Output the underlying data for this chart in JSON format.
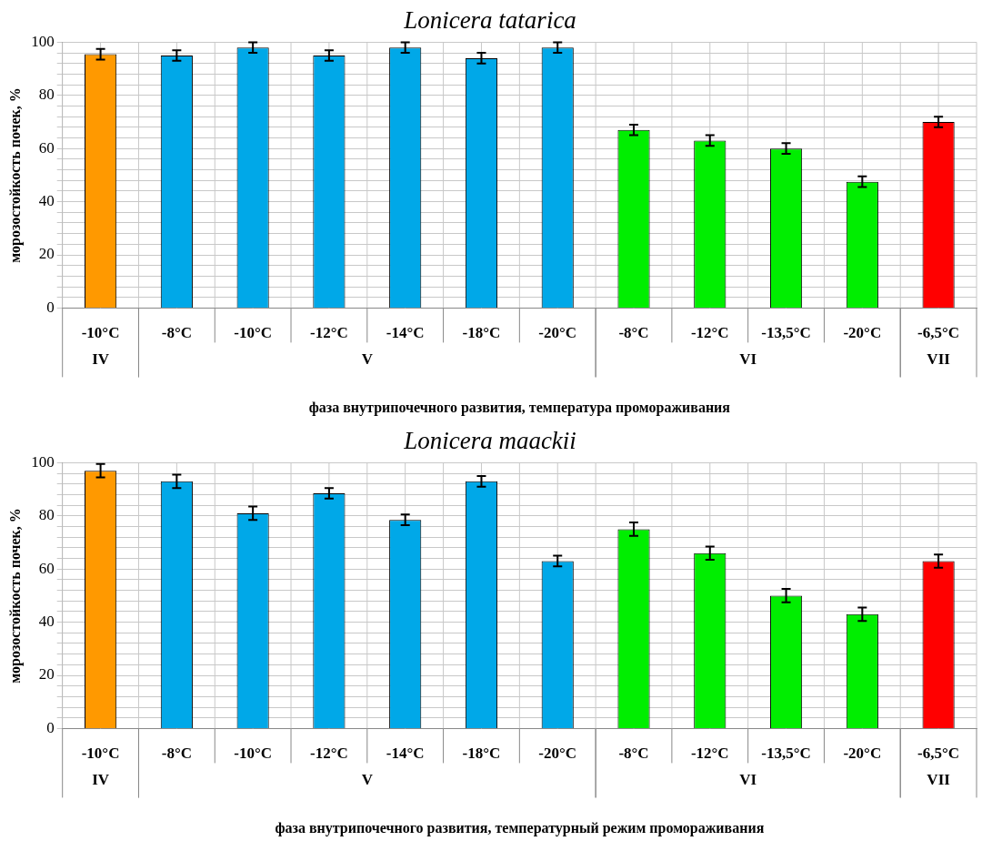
{
  "chart_data": [
    {
      "type": "bar",
      "title": "Lonicera tatarica",
      "xlabel": "фаза внутрипочечного развития, температура промораживания",
      "ylabel": "морозостойкость почек, %",
      "categories": [
        "-10°C",
        "-8°C",
        "-10°C",
        "-12°C",
        "-14°C",
        "-18°C",
        "-20°C",
        "-8°C",
        "-12°C",
        "-13,5°C",
        "-20°C",
        "-6,5°C"
      ],
      "stacked": true,
      "grid": true,
      "legend": false,
      "ylim": [
        0,
        100
      ],
      "yticks": [
        0,
        {
          "value": 4,
          "label": null
        },
        {
          "value": 8,
          "label": null
        },
        {
          "value": 12,
          "label": null
        },
        {
          "value": 16,
          "label": null
        },
        20,
        {
          "value": 24,
          "label": null
        },
        {
          "value": 28,
          "label": null
        },
        {
          "value": 32,
          "label": null
        },
        {
          "value": 36,
          "label": null
        },
        40,
        {
          "value": 44,
          "label": null
        },
        {
          "value": 48,
          "label": null
        },
        {
          "value": 52,
          "label": null
        },
        {
          "value": 56,
          "label": null
        },
        60,
        {
          "value": 64,
          "label": null
        },
        {
          "value": 68,
          "label": null
        },
        {
          "value": 72,
          "label": null
        },
        {
          "value": 76,
          "label": null
        },
        80,
        {
          "value": 84,
          "label": null
        },
        {
          "value": 88,
          "label": null
        },
        {
          "value": 92,
          "label": null
        },
        {
          "value": 96,
          "label": null
        },
        100
      ],
      "series": [
        {
          "name": "IV",
          "color": "#ff9900",
          "values": [
            95.5,
            null,
            null,
            null,
            null,
            null,
            null,
            null,
            null,
            null,
            null,
            null
          ],
          "errors": [
            2,
            null,
            null,
            null,
            null,
            null,
            null,
            null,
            null,
            null,
            null,
            null
          ]
        },
        {
          "name": "V",
          "color": "#00a8e8",
          "values": [
            null,
            95,
            98,
            95,
            98,
            94,
            98,
            null,
            null,
            null,
            null,
            null
          ],
          "errors": [
            null,
            2,
            2,
            2,
            2,
            2,
            2,
            null,
            null,
            null,
            null,
            null
          ]
        },
        {
          "name": "VI",
          "color": "#00ee00",
          "values": [
            null,
            null,
            null,
            null,
            null,
            null,
            null,
            67,
            63,
            60,
            47.5,
            null
          ],
          "errors": [
            null,
            null,
            null,
            null,
            null,
            null,
            null,
            2,
            2,
            2,
            2,
            null
          ]
        },
        {
          "name": "VII",
          "color": "#ff0000",
          "values": [
            null,
            null,
            null,
            null,
            null,
            null,
            null,
            null,
            null,
            null,
            null,
            70
          ],
          "errors": [
            null,
            null,
            null,
            null,
            null,
            null,
            null,
            null,
            null,
            null,
            null,
            2
          ]
        }
      ]
    },
    {
      "type": "bar",
      "title": "Lonicera maackii",
      "xlabel": "фаза внутрипочечного развития, температурный режим промораживания",
      "ylabel": "морозостойкость почек, %",
      "categories": [
        "-10°C",
        "-8°C",
        "-10°C",
        "-12°C",
        "-14°C",
        "-18°C",
        "-20°C",
        "-8°C",
        "-12°C",
        "-13,5°C",
        "-20°C",
        "-6,5°C"
      ],
      "stacked": true,
      "grid": true,
      "legend": false,
      "ylim": [
        0,
        100
      ],
      "yticks": [
        0,
        {
          "value": 4,
          "label": null
        },
        {
          "value": 8,
          "label": null
        },
        {
          "value": 12,
          "label": null
        },
        {
          "value": 16,
          "label": null
        },
        20,
        {
          "value": 24,
          "label": null
        },
        {
          "value": 28,
          "label": null
        },
        {
          "value": 32,
          "label": null
        },
        {
          "value": 36,
          "label": null
        },
        40,
        {
          "value": 44,
          "label": null
        },
        {
          "value": 48,
          "label": null
        },
        {
          "value": 52,
          "label": null
        },
        {
          "value": 56,
          "label": null
        },
        60,
        {
          "value": 64,
          "label": null
        },
        {
          "value": 68,
          "label": null
        },
        {
          "value": 72,
          "label": null
        },
        {
          "value": 76,
          "label": null
        },
        80,
        {
          "value": 84,
          "label": null
        },
        {
          "value": 88,
          "label": null
        },
        {
          "value": 92,
          "label": null
        },
        {
          "value": 96,
          "label": null
        },
        100
      ],
      "series": [
        {
          "name": "IV",
          "color": "#ff9900",
          "values": [
            97,
            null,
            null,
            null,
            null,
            null,
            null,
            null,
            null,
            null,
            null,
            null
          ],
          "errors": [
            2.5,
            null,
            null,
            null,
            null,
            null,
            null,
            null,
            null,
            null,
            null,
            null
          ]
        },
        {
          "name": "V",
          "color": "#00a8e8",
          "values": [
            null,
            93,
            81,
            88.5,
            78.5,
            93,
            63,
            null,
            null,
            null,
            null,
            null
          ],
          "errors": [
            null,
            2.5,
            2.5,
            2,
            2,
            2,
            2,
            null,
            null,
            null,
            null,
            null
          ]
        },
        {
          "name": "VI",
          "color": "#00ee00",
          "values": [
            null,
            null,
            null,
            null,
            null,
            null,
            null,
            75,
            66,
            50,
            43,
            null
          ],
          "errors": [
            null,
            null,
            null,
            null,
            null,
            null,
            null,
            2.5,
            2.5,
            2.5,
            2.5,
            null
          ]
        },
        {
          "name": "VII",
          "color": "#ff0000",
          "values": [
            null,
            null,
            null,
            null,
            null,
            null,
            null,
            null,
            null,
            null,
            null,
            63
          ],
          "errors": [
            null,
            null,
            null,
            null,
            null,
            null,
            null,
            null,
            null,
            null,
            null,
            2.5
          ]
        }
      ]
    }
  ]
}
